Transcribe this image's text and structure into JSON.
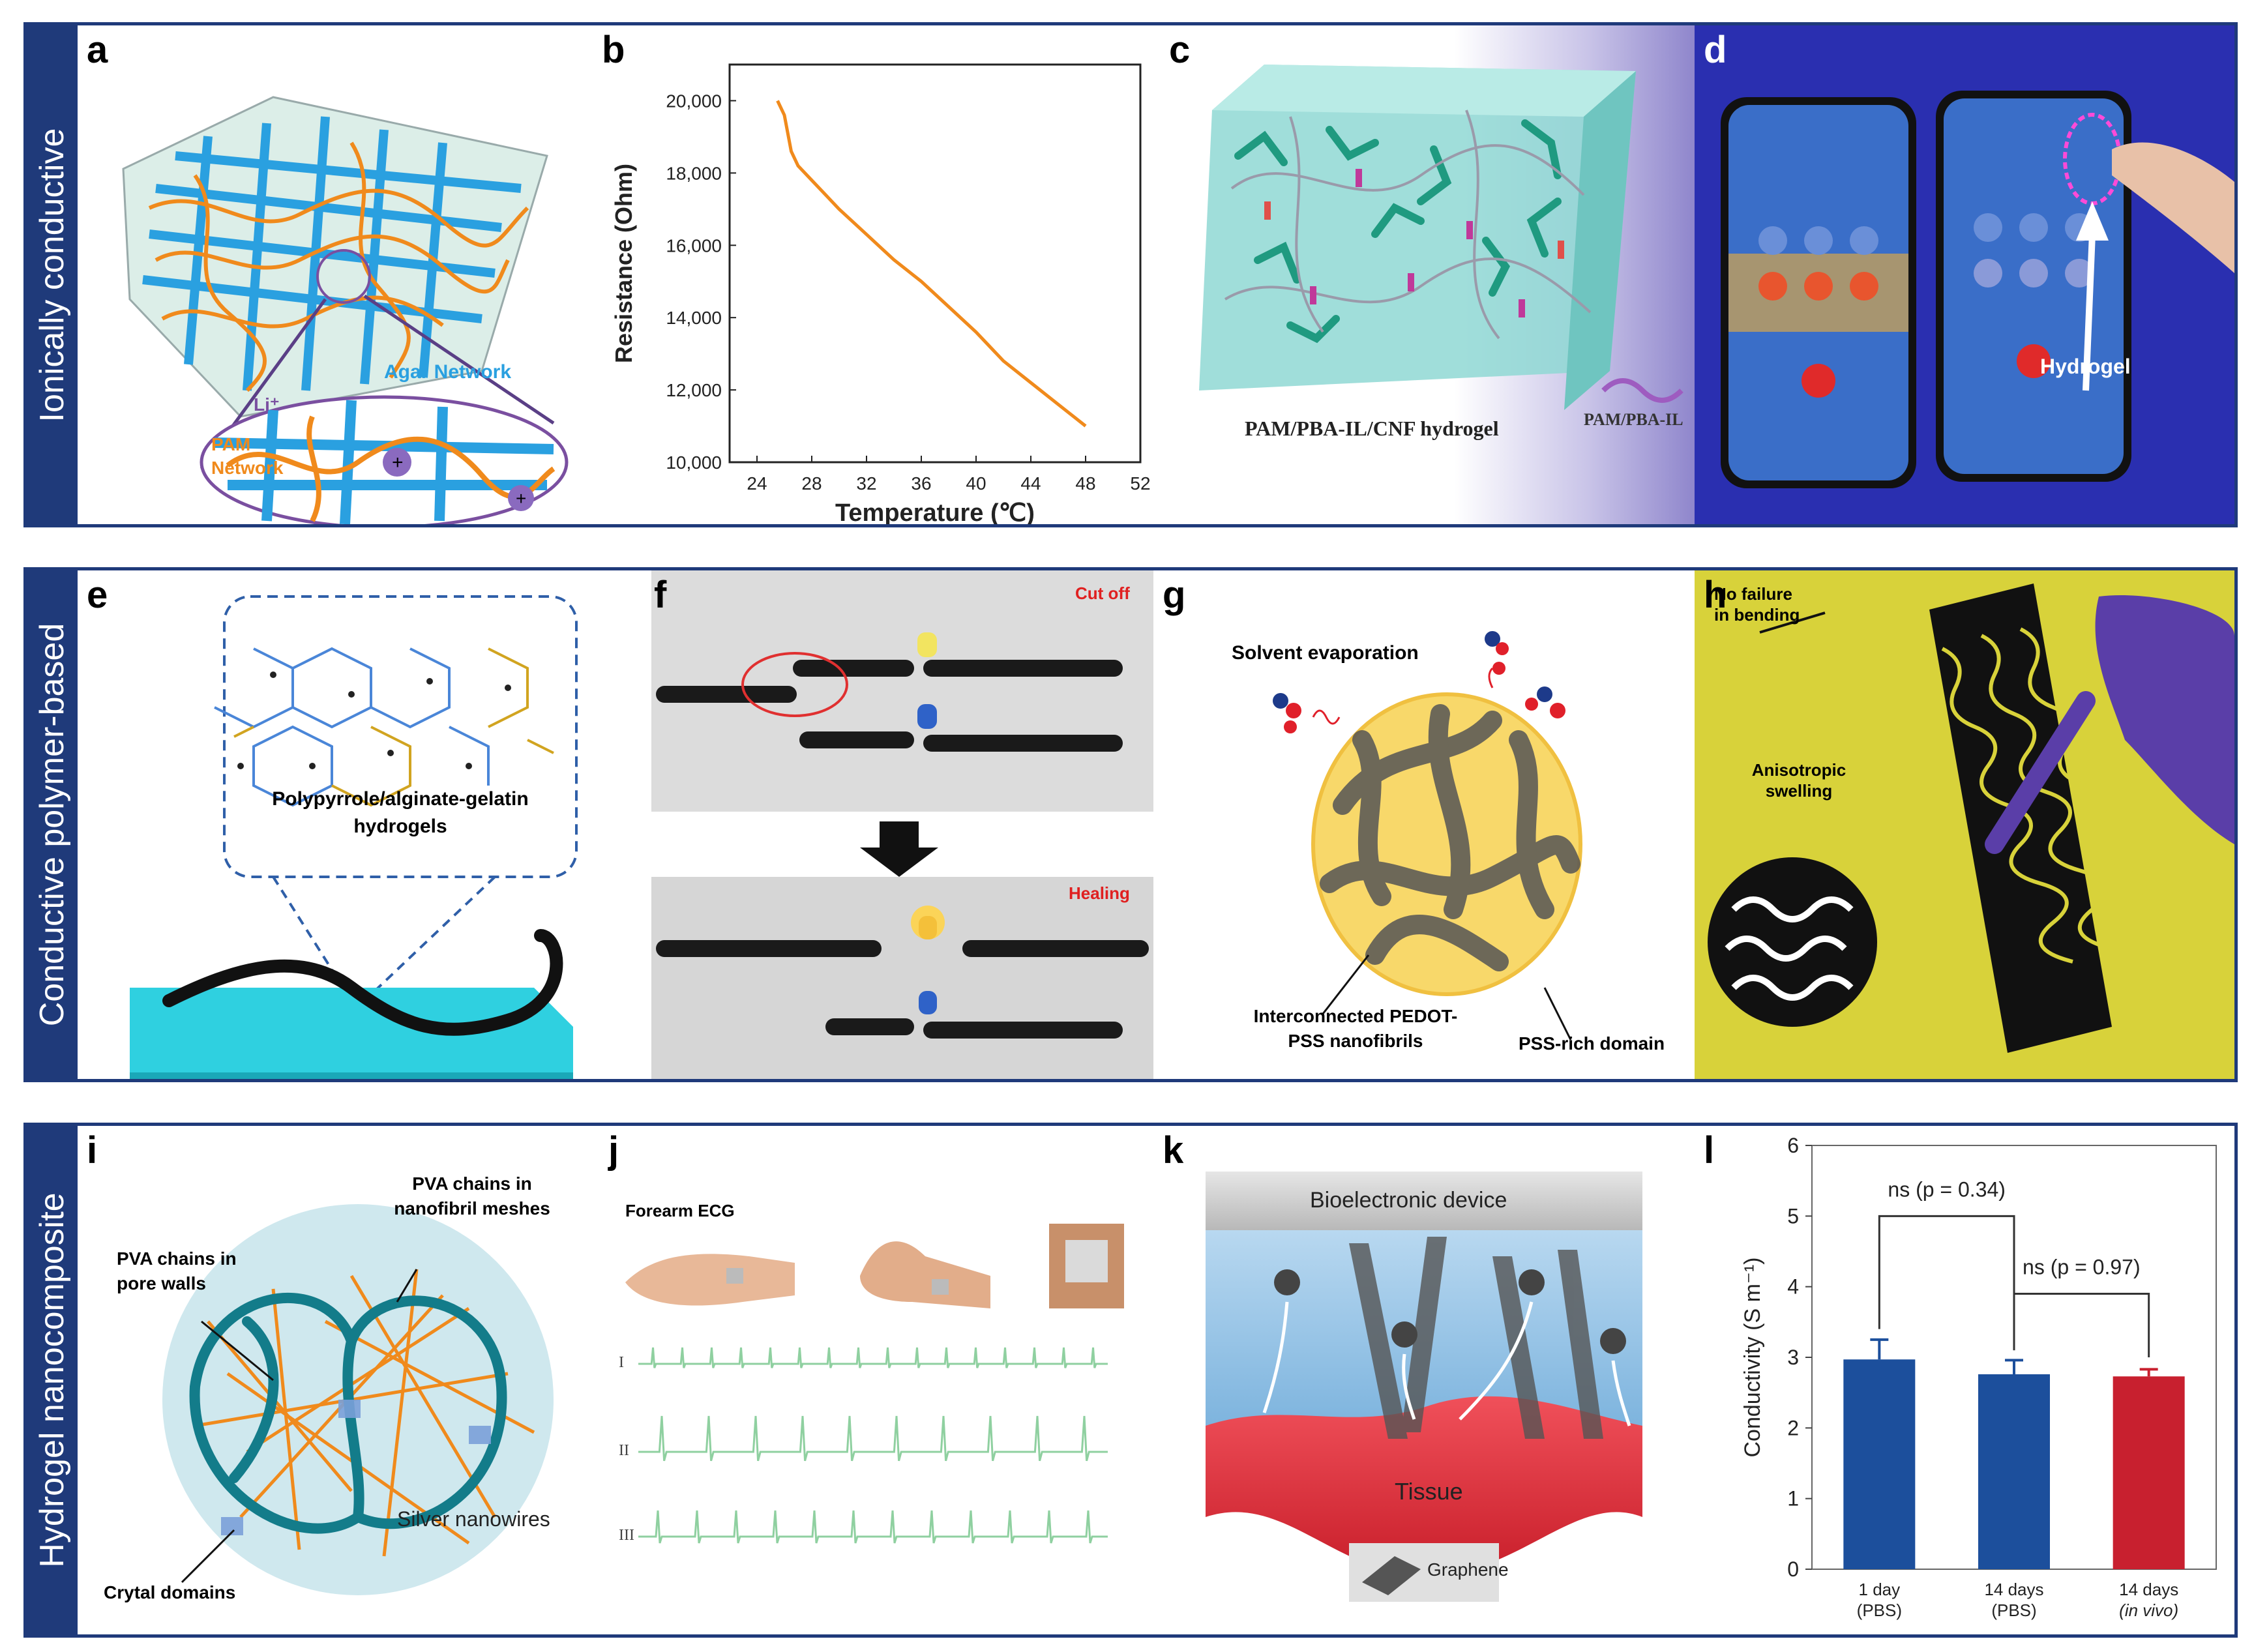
{
  "rows": [
    {
      "label": "Ionically conductive"
    },
    {
      "label": "Conductive  polymer-based"
    },
    {
      "label": "Hydrogel  nanocomposite"
    }
  ],
  "panels": {
    "a": {
      "letter": "a",
      "agar": "Agar Network",
      "li": "Li⁺",
      "pam": "PAM\nNetwork"
    },
    "b": {
      "letter": "b"
    },
    "c": {
      "letter": "c",
      "caption": "PAM/PBA-IL/CNF hydrogel",
      "legend": "PAM/PBA-IL"
    },
    "d": {
      "letter": "d",
      "label": "Hydrogel"
    },
    "e": {
      "letter": "e",
      "label": "Polypyrrole/alginate-gelatin hydrogels"
    },
    "f": {
      "letter": "f",
      "top": "Cut off",
      "bottom": "Healing"
    },
    "g": {
      "letter": "g",
      "solvent": "Solvent evaporation",
      "inter": "Interconnected PEDOT-PSS nanofibrils",
      "pss": "PSS-rich domain"
    },
    "h": {
      "letter": "h",
      "nofail": "No failure in bending",
      "aniso": "Anisotropic swelling"
    },
    "i": {
      "letter": "i",
      "pva1": "PVA chains in nanofibril meshes",
      "pva2": "PVA chains in pore walls",
      "silver": "Silver nanowires",
      "crystal": "Crytal domains"
    },
    "j": {
      "letter": "j",
      "title": "Forearm ECG",
      "leads": [
        "I",
        "II",
        "III"
      ]
    },
    "k": {
      "letter": "k",
      "device": "Bioelectronic device",
      "tissue": "Tissue",
      "graphene": "Graphene"
    },
    "l": {
      "letter": "l"
    }
  },
  "chart_data": [
    {
      "type": "line",
      "panel": "b",
      "title": "",
      "xlabel": "Temperature (℃)",
      "ylabel": "Resistance (Ohm)",
      "xlim": [
        22,
        52
      ],
      "ylim": [
        10000,
        21000
      ],
      "xticks": [
        24,
        28,
        32,
        36,
        40,
        44,
        48,
        52
      ],
      "yticks": [
        "10,000",
        "12,000",
        "14,000",
        "16,000",
        "18,000",
        "20,000"
      ],
      "color": "#f08a1c",
      "x": [
        25.5,
        26,
        26.5,
        27,
        28,
        30,
        32,
        34,
        36,
        38,
        40,
        42,
        44,
        46,
        48
      ],
      "y": [
        20000,
        19600,
        18600,
        18200,
        17800,
        17000,
        16300,
        15600,
        15000,
        14300,
        13600,
        12800,
        12200,
        11600,
        11000
      ]
    },
    {
      "type": "bar",
      "panel": "l",
      "ylabel": "Conductivity (S m⁻¹)",
      "ylim": [
        0,
        6
      ],
      "yticks": [
        0,
        1,
        2,
        3,
        4,
        5,
        6
      ],
      "categories": [
        "1 day\n(PBS)",
        "14 days\n(PBS)",
        "14 days\n(in vivo)"
      ],
      "values": [
        2.97,
        2.76,
        2.73
      ],
      "errors": [
        0.28,
        0.2,
        0.1
      ],
      "colors": [
        "#1c4f9c",
        "#1c4f9c",
        "#c8202f"
      ],
      "annotations": [
        "ns (p = 0.34)",
        "ns (p = 0.97)"
      ]
    }
  ]
}
